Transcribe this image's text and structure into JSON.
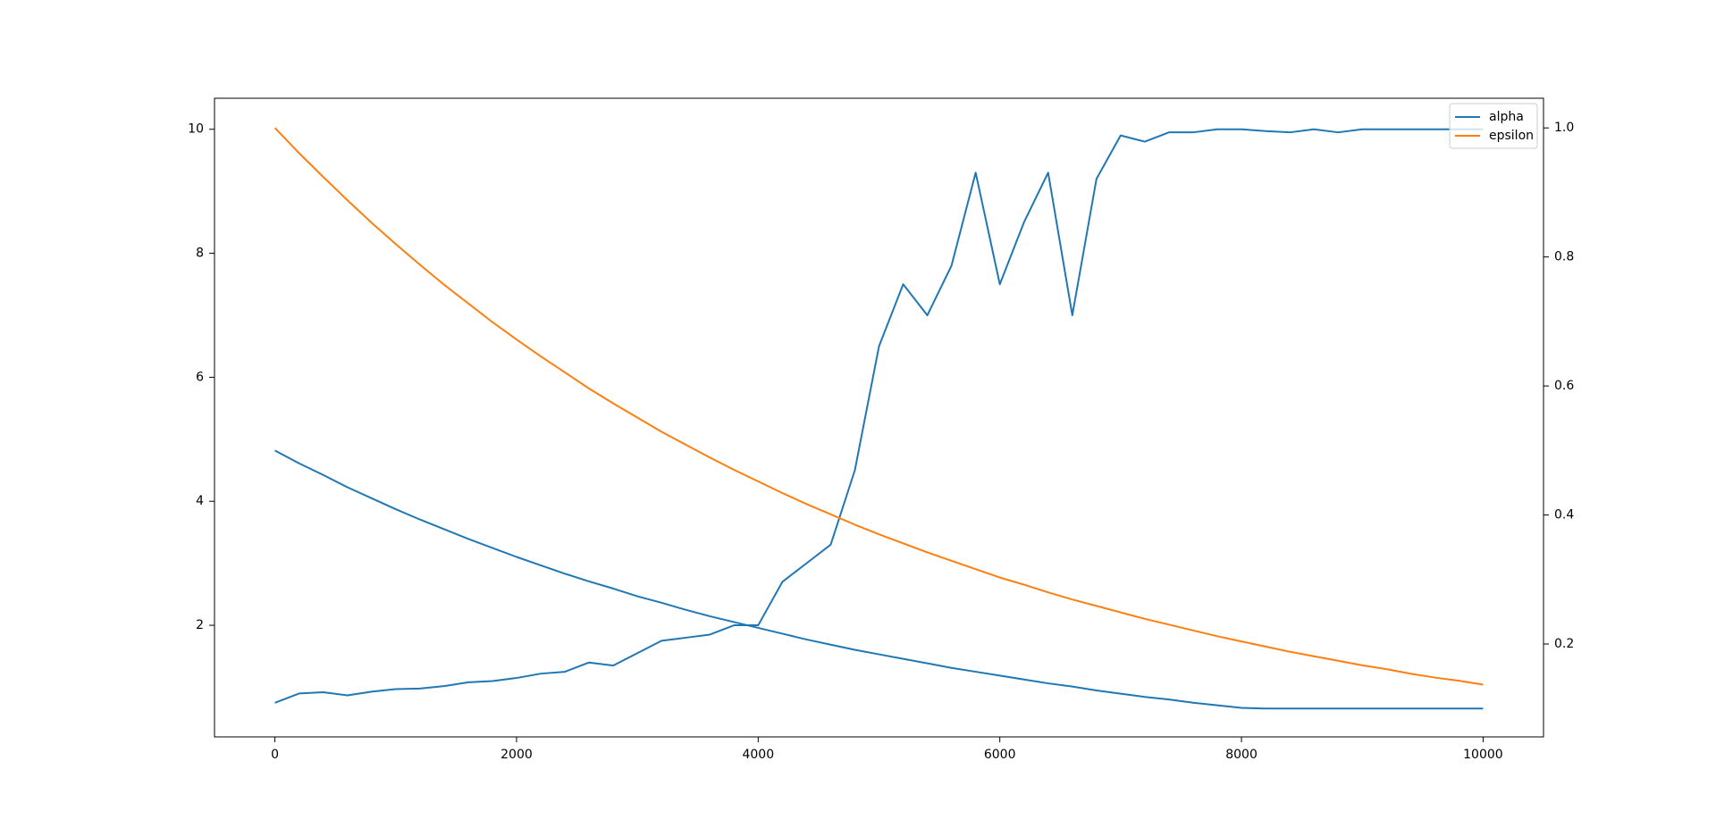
{
  "chart_data": {
    "type": "line",
    "x": [
      0,
      200,
      400,
      600,
      800,
      1000,
      1200,
      1400,
      1600,
      1800,
      2000,
      2200,
      2400,
      2600,
      2800,
      3000,
      3200,
      3400,
      3600,
      3800,
      4000,
      4200,
      4400,
      4600,
      4800,
      5000,
      5200,
      5400,
      5600,
      5800,
      6000,
      6200,
      6400,
      6600,
      6800,
      7000,
      7200,
      7400,
      7600,
      7800,
      8000,
      8200,
      8400,
      8600,
      8800,
      9000,
      9200,
      9400,
      9600,
      9800,
      10000
    ],
    "series": [
      {
        "color": "#1f77b4",
        "axis": "y",
        "values": [
          0.75,
          0.9,
          0.92,
          0.87,
          0.93,
          0.97,
          0.98,
          1.02,
          1.08,
          1.1,
          1.15,
          1.22,
          1.25,
          1.4,
          1.35,
          1.55,
          1.75,
          1.8,
          1.85,
          2.0,
          2.0,
          2.7,
          3.0,
          3.3,
          4.5,
          6.5,
          7.5,
          7.0,
          7.8,
          9.3,
          7.5,
          8.5,
          9.3,
          7.0,
          9.2,
          9.9,
          9.8,
          9.95,
          9.95,
          10.0,
          10.0,
          9.97,
          9.95,
          10.0,
          9.95,
          10.0,
          10.0,
          10.0,
          10.0,
          10.0,
          10.0
        ]
      },
      {
        "name": "alpha",
        "color": "#1f77b4",
        "axis": "y2",
        "values": [
          0.5,
          0.48,
          0.462,
          0.443,
          0.426,
          0.409,
          0.393,
          0.378,
          0.363,
          0.349,
          0.335,
          0.322,
          0.309,
          0.297,
          0.286,
          0.274,
          0.264,
          0.253,
          0.243,
          0.234,
          0.225,
          0.216,
          0.207,
          0.199,
          0.191,
          0.184,
          0.177,
          0.17,
          0.163,
          0.157,
          0.151,
          0.145,
          0.139,
          0.134,
          0.128,
          0.123,
          0.118,
          0.114,
          0.109,
          0.105,
          0.101,
          0.1,
          0.1,
          0.1,
          0.1,
          0.1,
          0.1,
          0.1,
          0.1,
          0.1,
          0.1
        ]
      },
      {
        "name": "epsilon",
        "color": "#ff7f0e",
        "axis": "y2",
        "values": [
          1.0,
          0.961,
          0.924,
          0.888,
          0.853,
          0.82,
          0.788,
          0.757,
          0.728,
          0.699,
          0.672,
          0.646,
          0.621,
          0.596,
          0.573,
          0.551,
          0.529,
          0.509,
          0.489,
          0.47,
          0.452,
          0.434,
          0.417,
          0.401,
          0.385,
          0.37,
          0.356,
          0.342,
          0.329,
          0.316,
          0.303,
          0.292,
          0.28,
          0.269,
          0.259,
          0.249,
          0.239,
          0.23,
          0.221,
          0.212,
          0.204,
          0.196,
          0.188,
          0.181,
          0.174,
          0.167,
          0.161,
          0.154,
          0.148,
          0.143,
          0.137
        ]
      }
    ],
    "xlim": [
      -500,
      10500
    ],
    "xticks": [
      0,
      2000,
      4000,
      6000,
      8000,
      10000
    ],
    "ylim": [
      0.2,
      10.5
    ],
    "yticks": [
      2,
      4,
      6,
      8,
      10
    ],
    "y2lim": [
      0.056,
      1.046
    ],
    "y2ticks": [
      0.2,
      0.4,
      0.6,
      0.8,
      {
        "value": 1,
        "label": "1.0"
      }
    ],
    "legend": "upper right"
  }
}
